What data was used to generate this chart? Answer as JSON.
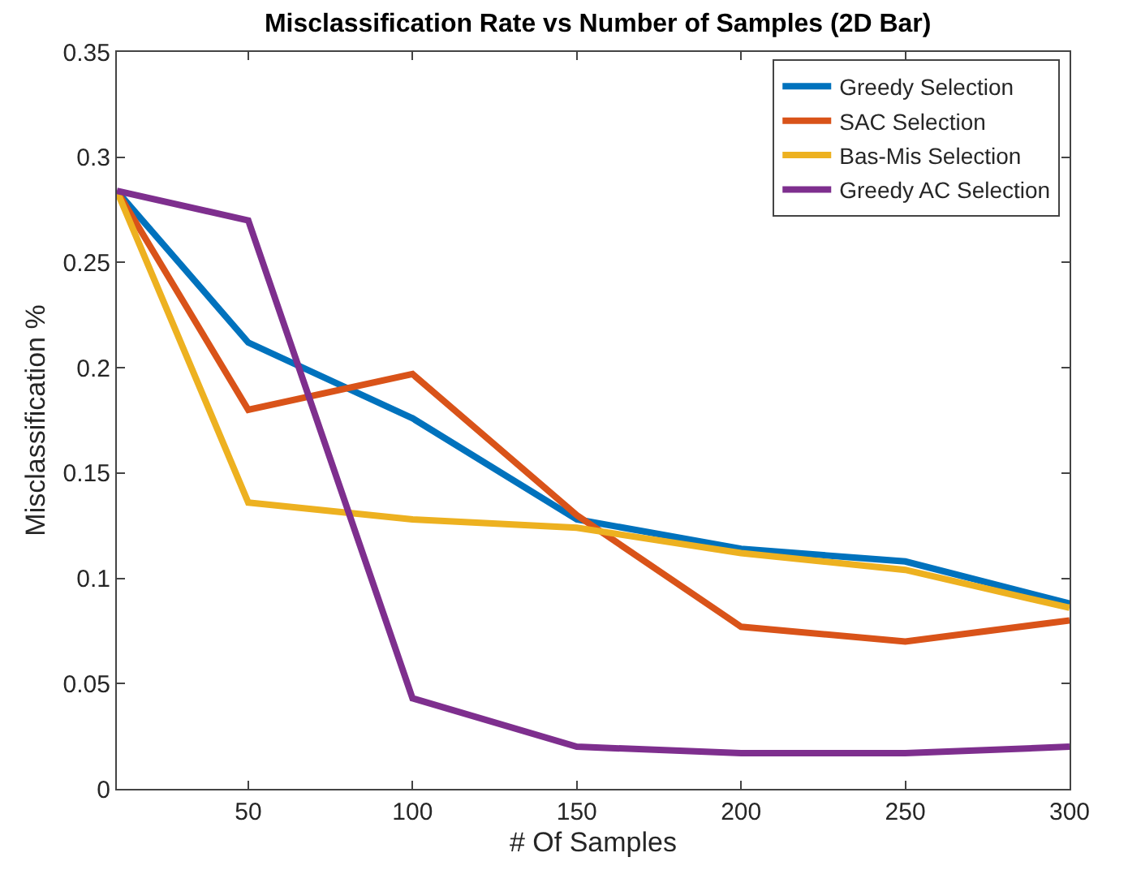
{
  "chart_data": {
    "type": "line",
    "title": "Misclassification Rate vs Number of Samples (2D Bar)",
    "xlabel": "# Of Samples",
    "ylabel": "Misclassification %",
    "x": [
      10,
      50,
      100,
      150,
      200,
      250,
      300
    ],
    "series": [
      {
        "name": "Greedy Selection",
        "color": "#0072bd",
        "values": [
          0.284,
          0.212,
          0.176,
          0.128,
          0.114,
          0.108,
          0.088
        ]
      },
      {
        "name": "SAC Selection",
        "color": "#d95319",
        "values": [
          0.284,
          0.18,
          0.197,
          0.13,
          0.077,
          0.07,
          0.08
        ]
      },
      {
        "name": "Bas-Mis Selection",
        "color": "#edb120",
        "values": [
          0.284,
          0.136,
          0.128,
          0.124,
          0.112,
          0.104,
          0.086
        ]
      },
      {
        "name": "Greedy AC Selection",
        "color": "#7e2f8e",
        "values": [
          0.284,
          0.27,
          0.043,
          0.02,
          0.017,
          0.017,
          0.02
        ]
      }
    ],
    "xlim": [
      10,
      300
    ],
    "xticks": [
      50,
      100,
      150,
      200,
      250,
      300
    ],
    "ylim": [
      0,
      0.35
    ],
    "yticks": [
      0,
      0.05,
      0.1,
      0.15,
      0.2,
      0.25,
      0.3,
      0.35
    ],
    "legend": "top right",
    "marker": "none",
    "line_style": "solid"
  }
}
